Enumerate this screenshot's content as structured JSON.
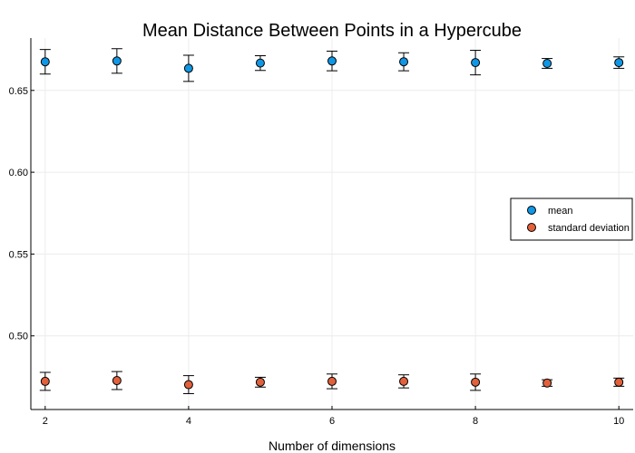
{
  "chart_data": {
    "type": "scatter",
    "title": "Mean Distance Between Points in a Hypercube",
    "xlabel": "Number of dimensions",
    "ylabel": "",
    "x": [
      2,
      3,
      4,
      5,
      6,
      7,
      8,
      9,
      10
    ],
    "xlim": [
      1.8,
      10.2
    ],
    "ylim": [
      0.455,
      0.682
    ],
    "xticks": [
      2,
      4,
      6,
      8,
      10
    ],
    "yticks": [
      0.5,
      0.55,
      0.6,
      0.65
    ],
    "ytick_labels": [
      "0.50",
      "0.55",
      "0.60",
      "0.65"
    ],
    "grid": true,
    "legend_position": "right",
    "series": [
      {
        "name": "mean",
        "color": "#0f97e6",
        "values": [
          0.6675,
          0.668,
          0.6635,
          0.6667,
          0.668,
          0.6675,
          0.667,
          0.6665,
          0.667
        ],
        "errors": [
          0.0075,
          0.0075,
          0.008,
          0.0045,
          0.006,
          0.0055,
          0.0075,
          0.003,
          0.0035
        ]
      },
      {
        "name": "standard deviation",
        "color": "#e2603b",
        "values": [
          0.4722,
          0.4727,
          0.4702,
          0.4717,
          0.4722,
          0.4722,
          0.4717,
          0.4712,
          0.4717
        ],
        "errors": [
          0.0055,
          0.0055,
          0.0055,
          0.003,
          0.0045,
          0.004,
          0.005,
          0.002,
          0.0025
        ]
      }
    ]
  }
}
